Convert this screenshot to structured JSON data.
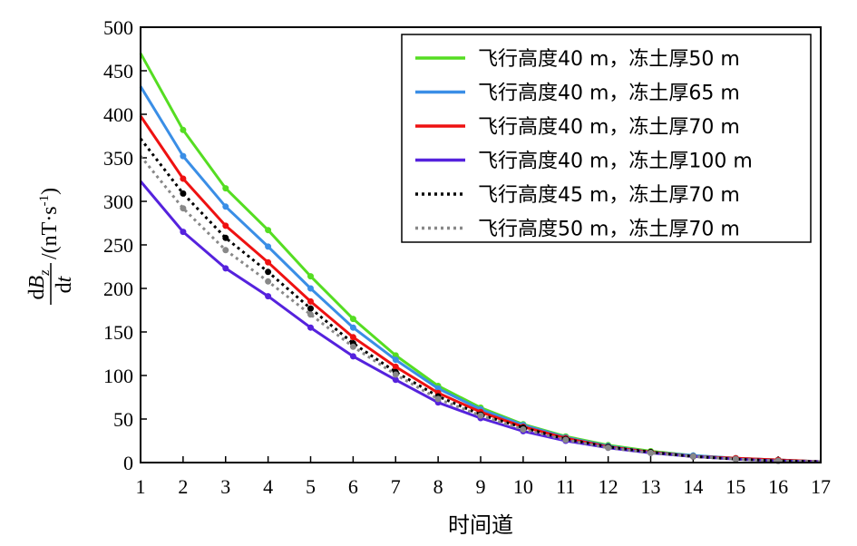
{
  "chart_data": {
    "type": "line",
    "xlabel": "时间道",
    "ylabel": {
      "numerator_d": "d",
      "numerator_var": "B",
      "numerator_sub": "z",
      "denominator_d": "d",
      "denominator_var": "t",
      "unit_prefix": "/(nT·s",
      "unit_exp": "-1",
      "unit_suffix": ")"
    },
    "xlim": [
      1,
      17
    ],
    "ylim": [
      0,
      500
    ],
    "x_ticks": [
      "1",
      "2",
      "3",
      "4",
      "5",
      "6",
      "7",
      "8",
      "9",
      "10",
      "11",
      "12",
      "13",
      "14",
      "15",
      "16",
      "17"
    ],
    "y_ticks": [
      "0",
      "50",
      "100",
      "150",
      "200",
      "250",
      "300",
      "350",
      "400",
      "450",
      "500"
    ],
    "legend_position": "top-right",
    "x": [
      1,
      2,
      3,
      4,
      5,
      6,
      7,
      8,
      9,
      10,
      11,
      12,
      13,
      14,
      15,
      16,
      17
    ],
    "series": [
      {
        "name": "飞行高度40 m，冻土厚50 m",
        "color": "#55dd22",
        "dash": "solid",
        "values": [
          470,
          382,
          315,
          267,
          214,
          165,
          123,
          88,
          63,
          44,
          30,
          20,
          13,
          8,
          5,
          3,
          1
        ]
      },
      {
        "name": "飞行高度40 m，冻土厚65 m",
        "color": "#3a8ee6",
        "dash": "solid",
        "values": [
          432,
          352,
          294,
          248,
          200,
          155,
          118,
          85,
          61,
          43,
          29,
          19,
          12,
          8,
          5,
          3,
          1
        ]
      },
      {
        "name": "飞行高度40 m，冻土厚70 m",
        "color": "#ee1111",
        "dash": "solid",
        "values": [
          398,
          326,
          272,
          230,
          185,
          144,
          110,
          80,
          58,
          41,
          28,
          18,
          12,
          7,
          5,
          3,
          1
        ]
      },
      {
        "name": "飞行高度40 m，冻土厚100 m",
        "color": "#5522dd",
        "dash": "solid",
        "values": [
          323,
          265,
          223,
          191,
          155,
          122,
          95,
          69,
          51,
          36,
          25,
          17,
          11,
          7,
          4,
          2,
          1
        ]
      },
      {
        "name": "飞行高度45 m，冻土厚70 m",
        "color": "#000000",
        "dash": "dotted",
        "values": [
          372,
          309,
          258,
          219,
          177,
          137,
          104,
          76,
          55,
          40,
          27,
          18,
          12,
          7,
          4,
          2,
          1
        ]
      },
      {
        "name": "飞行高度50 m，冻土厚70 m",
        "color": "#888888",
        "dash": "dotted",
        "values": [
          352,
          292,
          244,
          208,
          170,
          133,
          101,
          73,
          54,
          38,
          26,
          17,
          11,
          7,
          4,
          2,
          1
        ]
      }
    ]
  }
}
